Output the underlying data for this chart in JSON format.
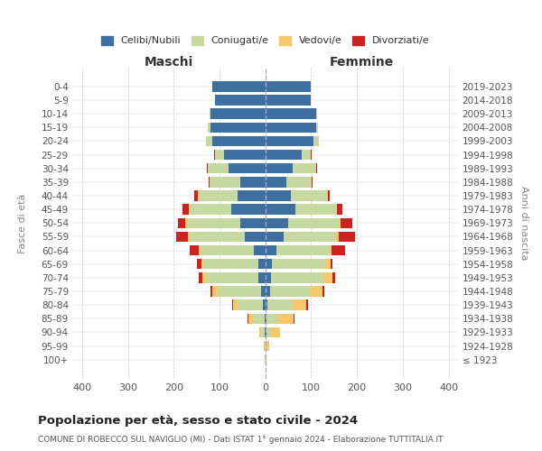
{
  "age_groups": [
    "100+",
    "95-99",
    "90-94",
    "85-89",
    "80-84",
    "75-79",
    "70-74",
    "65-69",
    "60-64",
    "55-59",
    "50-54",
    "45-49",
    "40-44",
    "35-39",
    "30-34",
    "25-29",
    "20-24",
    "15-19",
    "10-14",
    "5-9",
    "0-4"
  ],
  "birth_years": [
    "≤ 1923",
    "1924-1928",
    "1929-1933",
    "1934-1938",
    "1939-1943",
    "1944-1948",
    "1949-1953",
    "1954-1958",
    "1959-1963",
    "1964-1968",
    "1969-1973",
    "1974-1978",
    "1979-1983",
    "1984-1988",
    "1989-1993",
    "1994-1998",
    "1999-2003",
    "2004-2008",
    "2009-2013",
    "2014-2018",
    "2019-2023"
  ],
  "males": {
    "celibi": [
      0,
      0,
      1,
      2,
      5,
      10,
      15,
      15,
      25,
      45,
      55,
      75,
      60,
      55,
      80,
      90,
      115,
      120,
      120,
      110,
      115
    ],
    "coniugati": [
      1,
      2,
      8,
      25,
      55,
      95,
      115,
      120,
      115,
      120,
      115,
      90,
      85,
      65,
      45,
      20,
      15,
      5,
      2,
      0,
      0
    ],
    "vedovi": [
      0,
      1,
      5,
      10,
      10,
      10,
      8,
      5,
      5,
      5,
      5,
      3,
      2,
      1,
      1,
      0,
      0,
      0,
      0,
      0,
      0
    ],
    "divorziati": [
      0,
      0,
      0,
      2,
      3,
      5,
      8,
      10,
      20,
      25,
      15,
      12,
      8,
      3,
      2,
      1,
      0,
      0,
      0,
      0,
      0
    ]
  },
  "females": {
    "nubili": [
      0,
      0,
      2,
      2,
      5,
      10,
      12,
      15,
      25,
      40,
      50,
      65,
      55,
      45,
      60,
      80,
      105,
      110,
      110,
      100,
      100
    ],
    "coniugate": [
      1,
      3,
      10,
      25,
      55,
      90,
      115,
      115,
      115,
      115,
      110,
      90,
      80,
      55,
      50,
      20,
      12,
      5,
      2,
      0,
      0
    ],
    "vedove": [
      1,
      5,
      20,
      35,
      30,
      25,
      20,
      12,
      5,
      5,
      5,
      2,
      1,
      1,
      0,
      0,
      0,
      0,
      0,
      0,
      0
    ],
    "divorziate": [
      0,
      0,
      1,
      2,
      3,
      3,
      5,
      5,
      30,
      35,
      25,
      12,
      5,
      3,
      2,
      1,
      0,
      0,
      0,
      0,
      0
    ]
  },
  "colors": {
    "celibi": "#3d6fa0",
    "coniugati": "#c5d9a0",
    "vedovi": "#f5c96a",
    "divorziati": "#cc2222"
  },
  "xlim": 420,
  "title": "Popolazione per età, sesso e stato civile - 2024",
  "subtitle": "COMUNE DI ROBECCO SUL NAVIGLIO (MI) - Dati ISTAT 1° gennaio 2024 - Elaborazione TUTTITALIA.IT",
  "ylabel": "Fasce di età",
  "ylabel_right": "Anni di nascita",
  "legend_labels": [
    "Celibi/Nubili",
    "Coniugati/e",
    "Vedovi/e",
    "Divorziati/e"
  ],
  "maschi_label": "Maschi",
  "femmine_label": "Femmine"
}
